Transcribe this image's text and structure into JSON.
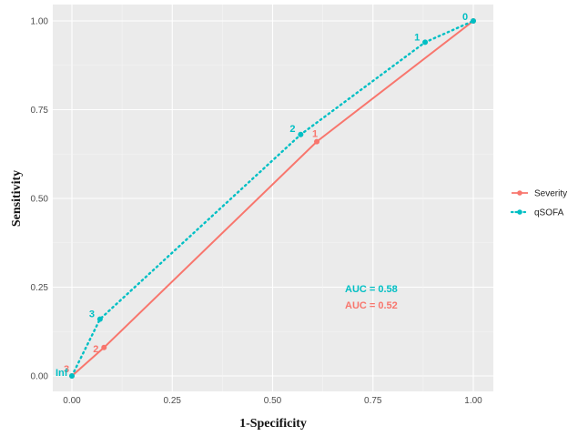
{
  "chart_data": {
    "type": "line",
    "title": "",
    "xlabel": "1-Specificity",
    "ylabel": "Sensitivity",
    "xlim": [
      0,
      1
    ],
    "ylim": [
      0,
      1
    ],
    "x_ticks": [
      "0.00",
      "0.25",
      "0.50",
      "0.75",
      "1.00"
    ],
    "y_ticks": [
      "0.00",
      "0.25",
      "0.50",
      "0.75",
      "1.00"
    ],
    "grid": true,
    "legend_position": "right",
    "series": [
      {
        "name": "Severity",
        "color": "#F8766D",
        "style": "solid",
        "points": [
          {
            "x": 0.0,
            "y": 0.0,
            "label": "3"
          },
          {
            "x": 0.08,
            "y": 0.08,
            "label": "2"
          },
          {
            "x": 0.61,
            "y": 0.66,
            "label": "1"
          },
          {
            "x": 1.0,
            "y": 1.0,
            "label": ""
          }
        ]
      },
      {
        "name": "qSOFA",
        "color": "#00BFC4",
        "style": "dotted",
        "points": [
          {
            "x": 0.0,
            "y": 0.0,
            "label": "Inf"
          },
          {
            "x": 0.07,
            "y": 0.16,
            "label": "3"
          },
          {
            "x": 0.57,
            "y": 0.68,
            "label": "2"
          },
          {
            "x": 0.88,
            "y": 0.94,
            "label": "1"
          },
          {
            "x": 1.0,
            "y": 1.0,
            "label": "0"
          }
        ]
      }
    ],
    "annotations": [
      {
        "text": "AUC = 0.58",
        "color": "#00BFC4"
      },
      {
        "text": "AUC = 0.52",
        "color": "#F8766D"
      }
    ]
  }
}
